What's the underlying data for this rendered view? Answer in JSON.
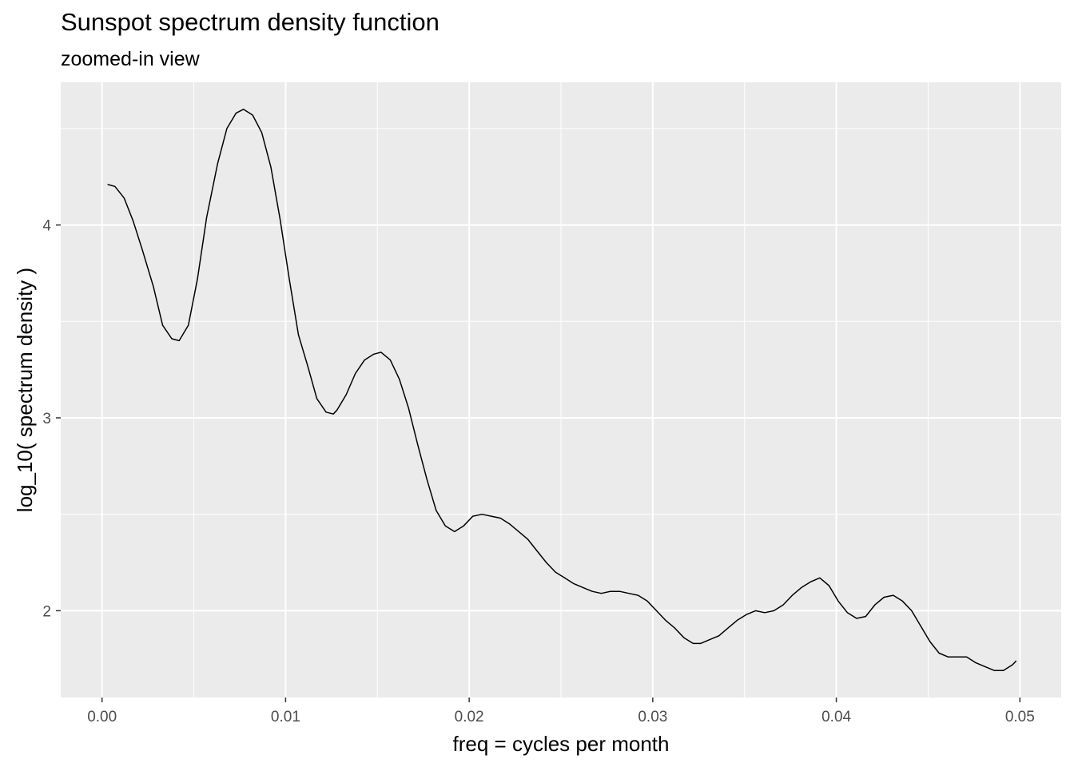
{
  "chart_data": {
    "type": "line",
    "title": "Sunspot spectrum density function",
    "subtitle": "zoomed-in view",
    "xlabel": "freq = cycles per month",
    "ylabel": "log_10( spectrum density )",
    "xlim": [
      -0.00225,
      0.05225
    ],
    "ylim": [
      1.55,
      4.74
    ],
    "x_ticks": [
      0.0,
      0.01,
      0.02,
      0.03,
      0.04,
      0.05
    ],
    "x_tick_labels": [
      "0.00",
      "0.01",
      "0.02",
      "0.03",
      "0.04",
      "0.05"
    ],
    "x_minor_ticks": [
      0.005,
      0.015,
      0.025,
      0.035,
      0.045
    ],
    "y_ticks": [
      2,
      3,
      4
    ],
    "y_tick_labels": [
      "2",
      "3",
      "4"
    ],
    "y_minor_ticks": [
      2.5,
      3.5,
      4.5
    ],
    "grid": true,
    "legend": "none",
    "colors": {
      "panel_background": "#ebebeb",
      "grid": "#ffffff",
      "line": "#000000"
    },
    "series": [
      {
        "x": [
          0.0003,
          0.0007,
          0.0012,
          0.0017,
          0.0022,
          0.0028,
          0.0033,
          0.0038,
          0.0042,
          0.0047,
          0.0052,
          0.0057,
          0.0063,
          0.0068,
          0.0073,
          0.0077,
          0.0082,
          0.0087,
          0.0092,
          0.0097,
          0.0102,
          0.0107,
          0.0112,
          0.0117,
          0.0122,
          0.0126,
          0.0128,
          0.0133,
          0.0138,
          0.0143,
          0.0148,
          0.0152,
          0.0157,
          0.0162,
          0.0167,
          0.0172,
          0.0177,
          0.0182,
          0.0187,
          0.0192,
          0.0197,
          0.0202,
          0.0207,
          0.0212,
          0.0217,
          0.0222,
          0.0227,
          0.0232,
          0.0237,
          0.0242,
          0.0247,
          0.0252,
          0.0257,
          0.0262,
          0.0267,
          0.0272,
          0.0277,
          0.0282,
          0.0287,
          0.0292,
          0.0297,
          0.0302,
          0.0307,
          0.0312,
          0.0317,
          0.0322,
          0.0326,
          0.0331,
          0.0336,
          0.0341,
          0.0346,
          0.0351,
          0.0356,
          0.0361,
          0.0366,
          0.0371,
          0.0376,
          0.0381,
          0.0386,
          0.0391,
          0.0396,
          0.0401,
          0.0406,
          0.0411,
          0.0416,
          0.0421,
          0.0426,
          0.0431,
          0.0436,
          0.0441,
          0.0446,
          0.0451,
          0.0456,
          0.0461,
          0.0466,
          0.0471,
          0.0476,
          0.0481,
          0.0486,
          0.0491,
          0.0496,
          0.0498
        ],
        "y": [
          4.21,
          4.2,
          4.14,
          4.02,
          3.87,
          3.68,
          3.48,
          3.41,
          3.4,
          3.48,
          3.72,
          4.04,
          4.32,
          4.5,
          4.58,
          4.6,
          4.57,
          4.48,
          4.3,
          4.03,
          3.72,
          3.43,
          3.27,
          3.1,
          3.03,
          3.02,
          3.04,
          3.12,
          3.23,
          3.3,
          3.33,
          3.34,
          3.3,
          3.2,
          3.05,
          2.86,
          2.68,
          2.52,
          2.44,
          2.41,
          2.44,
          2.49,
          2.5,
          2.49,
          2.48,
          2.45,
          2.41,
          2.37,
          2.31,
          2.25,
          2.2,
          2.17,
          2.14,
          2.12,
          2.1,
          2.09,
          2.1,
          2.1,
          2.09,
          2.08,
          2.05,
          2.0,
          1.95,
          1.91,
          1.86,
          1.83,
          1.83,
          1.85,
          1.87,
          1.91,
          1.95,
          1.98,
          2.0,
          1.99,
          2.0,
          2.03,
          2.08,
          2.12,
          2.15,
          2.17,
          2.13,
          2.05,
          1.99,
          1.96,
          1.97,
          2.03,
          2.07,
          2.08,
          2.05,
          2.0,
          1.92,
          1.84,
          1.78,
          1.76,
          1.76,
          1.76,
          1.73,
          1.71,
          1.69,
          1.69,
          1.72,
          1.74
        ]
      }
    ]
  }
}
